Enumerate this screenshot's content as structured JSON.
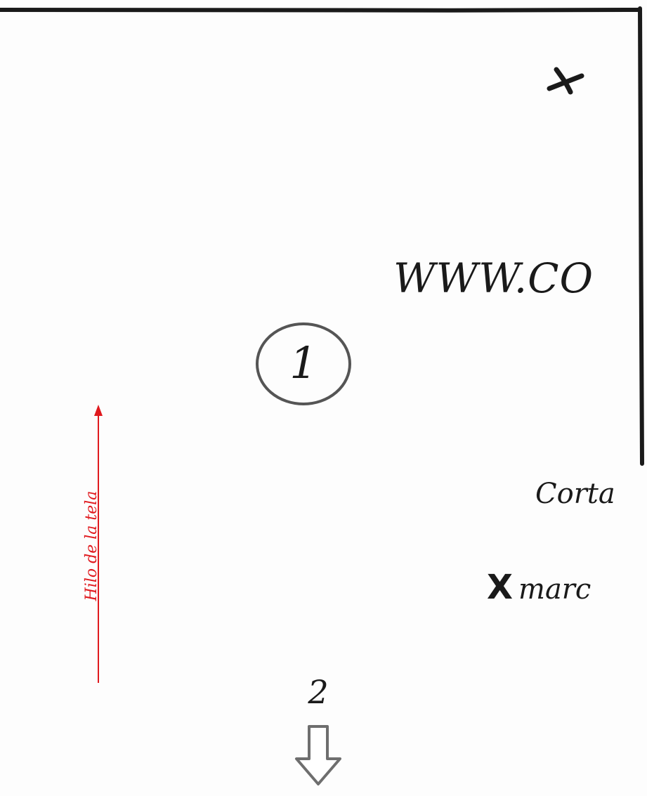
{
  "pattern": {
    "url_text": "WWW.CO",
    "piece_number": "1",
    "next_piece_number": "2",
    "grain_label": "Hilo de la tela",
    "instruction_cut": "Corta",
    "instruction_mark_symbol": "X",
    "instruction_mark_text": "marc",
    "notch_symbol": "x-mark",
    "colors": {
      "outline": "#1a1a1a",
      "grainline": "#e0191e",
      "arrow_outline": "#6e6e6e",
      "circle_outline": "#555555"
    }
  }
}
